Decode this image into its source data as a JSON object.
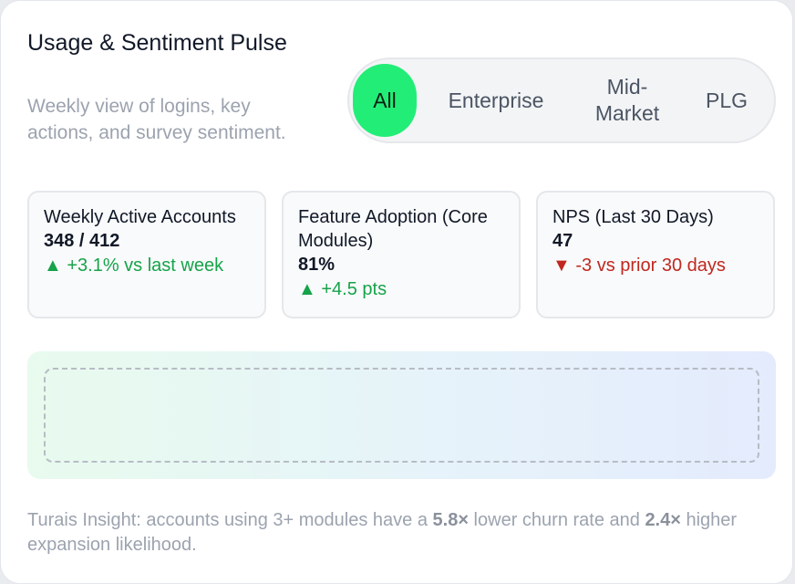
{
  "header": {
    "title": "Usage & Sentiment Pulse",
    "subtitle": "Weekly view of logins, key actions, and survey sentiment."
  },
  "segments": [
    {
      "label": "All",
      "active": true
    },
    {
      "label": "Enterprise",
      "active": false
    },
    {
      "label": "Mid-Market",
      "active": false
    },
    {
      "label": "PLG",
      "active": false
    }
  ],
  "metrics": [
    {
      "label": "Weekly Active Accounts",
      "value": "348 / 412",
      "delta": "▲ +3.1% vs last week",
      "trend": "up"
    },
    {
      "label": "Feature Adoption (Core Modules)",
      "value": "81%",
      "delta": "▲ +4.5 pts",
      "trend": "up"
    },
    {
      "label": "NPS (Last 30 Days)",
      "value": "47",
      "delta": "▼ -3 vs prior 30 days",
      "trend": "down"
    }
  ],
  "insight": {
    "prefix": "Turais Insight: accounts using 3+ modules have a ",
    "churn_multiple": "5.8×",
    "middle": " lower churn rate and ",
    "expansion_multiple": "2.4×",
    "suffix": " higher expansion likelihood."
  },
  "colors": {
    "active_segment": "#22ee77",
    "positive": "#16a34a",
    "negative": "#c0281f"
  }
}
